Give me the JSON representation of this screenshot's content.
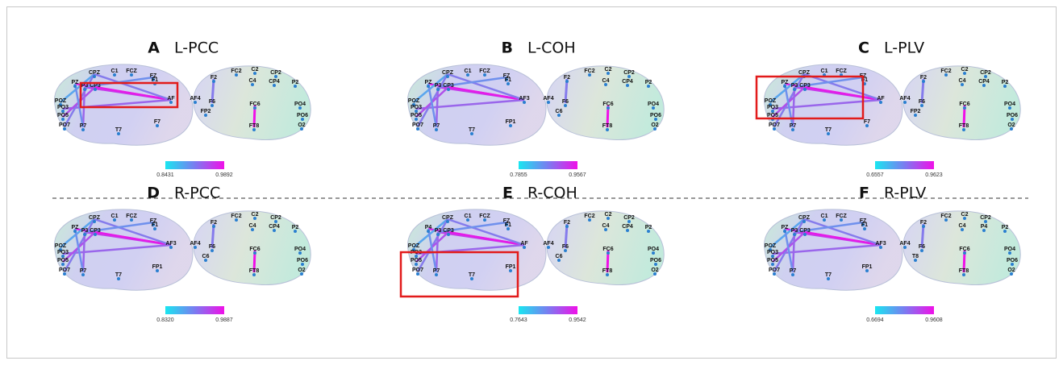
{
  "panels": [
    {
      "letter": "A",
      "title": "L-PCC",
      "left_electrodes": [
        "CPZ",
        "C1",
        "FCZ",
        "FZ",
        "F1",
        "P3",
        "CP3",
        "PZ",
        "AF",
        "POZ",
        "PO3",
        "PO5",
        "PO7",
        "P7",
        "T7",
        "F7"
      ],
      "right_electrodes": [
        "F2",
        "FC2",
        "C2",
        "C4",
        "CP2",
        "CP4",
        "P2",
        "AF4",
        "F6",
        "FC6",
        "FT8",
        "FP2",
        "PO4",
        "PO6",
        "O2"
      ],
      "colorbar": {
        "min": "0.8431",
        "max": "0.9892"
      }
    },
    {
      "letter": "B",
      "title": "L-COH",
      "left_electrodes": [
        "CPZ",
        "C1",
        "FCZ",
        "FZ",
        "F1",
        "P3",
        "CP3",
        "PZ",
        "AF3",
        "POZ",
        "PO3",
        "PO5",
        "PO7",
        "P7",
        "T7",
        "FP1"
      ],
      "right_electrodes": [
        "F2",
        "FC2",
        "C2",
        "C4",
        "CP2",
        "CP4",
        "P2",
        "AF4",
        "F6",
        "FC6",
        "FT8",
        "C6",
        "PO4",
        "PO6",
        "O2"
      ],
      "colorbar": {
        "min": "0.7855",
        "max": "0.9567"
      }
    },
    {
      "letter": "C",
      "title": "L-PLV",
      "left_electrodes": [
        "CPZ",
        "C1",
        "FCZ",
        "FZ",
        "F1",
        "P3",
        "CP3",
        "PZ",
        "AF",
        "POZ",
        "PO3",
        "PO5",
        "PO7",
        "P7",
        "T7",
        "F7"
      ],
      "right_electrodes": [
        "F2",
        "FC2",
        "C2",
        "C4",
        "CP2",
        "CP4",
        "P2",
        "AF4",
        "F6",
        "FC6",
        "FT8",
        "FP2",
        "PO4",
        "PO6",
        "O2"
      ],
      "colorbar": {
        "min": "0.6557",
        "max": "0.9623"
      }
    },
    {
      "letter": "D",
      "title": "R-PCC",
      "left_electrodes": [
        "CPZ",
        "C1",
        "FCZ",
        "FZ",
        "F1",
        "P3",
        "CP3",
        "PZ",
        "AF3",
        "POZ",
        "PO3",
        "PO5",
        "PO7",
        "P7",
        "T7",
        "FP1"
      ],
      "right_electrodes": [
        "F2",
        "FC2",
        "C2",
        "C4",
        "CP2",
        "CP4",
        "P2",
        "AF4",
        "F6",
        "FC6",
        "FT8",
        "C6",
        "PO4",
        "PO6",
        "O2"
      ],
      "colorbar": {
        "min": "0.8320",
        "max": "0.9887"
      }
    },
    {
      "letter": "E",
      "title": "R-COH",
      "left_electrodes": [
        "CPZ",
        "C1",
        "FCZ",
        "FZ",
        "F1",
        "P3",
        "CP3",
        "P4",
        "AF",
        "POZ",
        "PO3",
        "PO5",
        "PO7",
        "P7",
        "T7",
        "FP1"
      ],
      "right_electrodes": [
        "F2",
        "FC2",
        "C2",
        "C4",
        "CP2",
        "CP4",
        "P2",
        "AF4",
        "F6",
        "FC6",
        "FT8",
        "C6",
        "PO4",
        "PO6",
        "O2"
      ],
      "colorbar": {
        "min": "0.7643",
        "max": "0.9542"
      }
    },
    {
      "letter": "F",
      "title": "R-PLV",
      "left_electrodes": [
        "CPZ",
        "C1",
        "FCZ",
        "FZ",
        "F1",
        "P3",
        "CP3",
        "PZ",
        "AF3",
        "POZ",
        "PO3",
        "PO5",
        "PO7",
        "P7",
        "T7",
        "FP1"
      ],
      "right_electrodes": [
        "F2",
        "FC2",
        "C2",
        "C4",
        "CP2",
        "P4",
        "P2",
        "AF4",
        "F6",
        "FC6",
        "FT8",
        "T8",
        "PO4",
        "PO6",
        "O2"
      ],
      "colorbar": {
        "min": "0.6694",
        "max": "0.9608"
      }
    }
  ]
}
